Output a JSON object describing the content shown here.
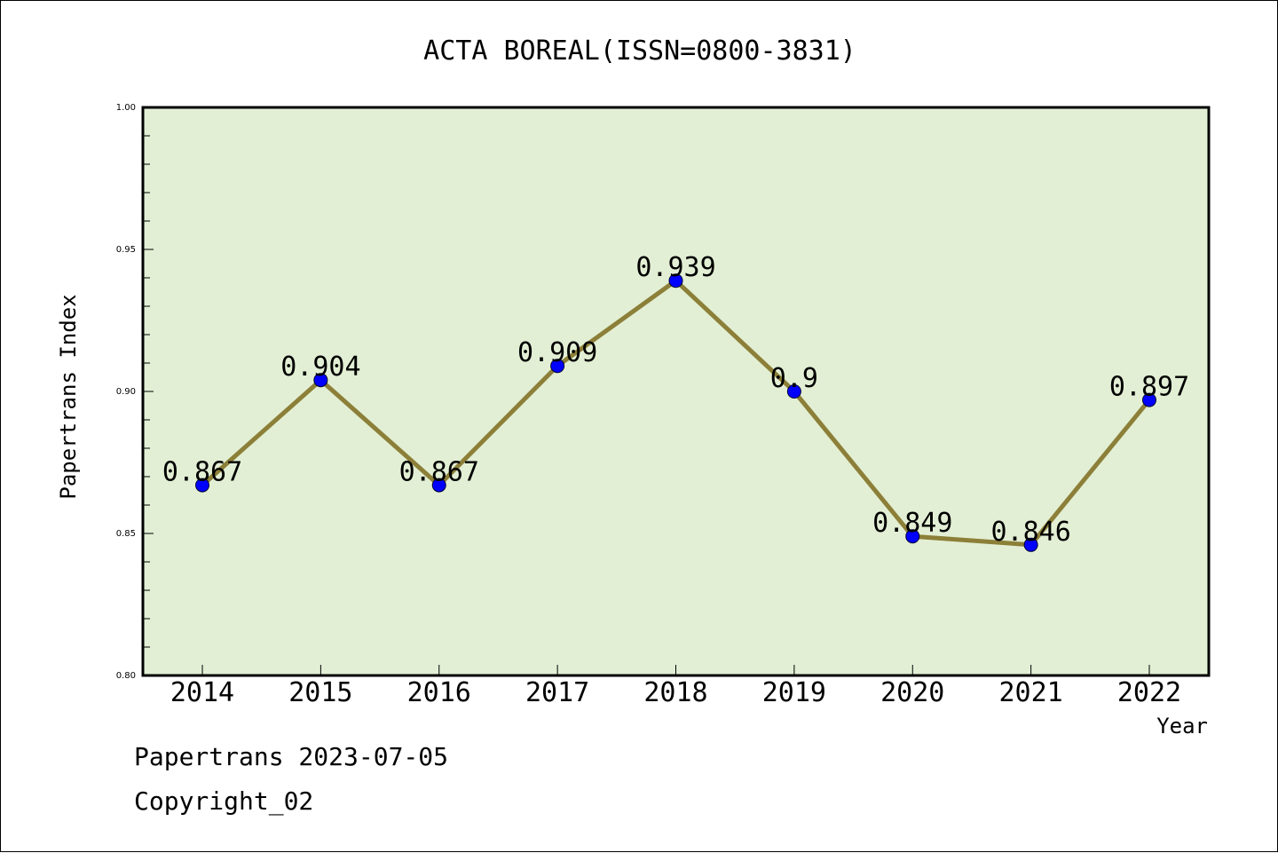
{
  "chart_data": {
    "type": "line",
    "title": "ACTA BOREAL(ISSN=0800-3831)",
    "xlabel": "Year",
    "ylabel": "Papertrans Index",
    "categories": [
      "2014",
      "2015",
      "2016",
      "2017",
      "2018",
      "2019",
      "2020",
      "2021",
      "2022"
    ],
    "values": [
      0.867,
      0.904,
      0.867,
      0.909,
      0.939,
      0.9,
      0.849,
      0.846,
      0.897
    ],
    "data_labels": [
      "0.867",
      "0.904",
      "0.867",
      "0.909",
      "0.939",
      "0.9",
      "0.849",
      "0.846",
      "0.897"
    ],
    "ylim": [
      0.8,
      1.0
    ],
    "y_ticks": [
      0.8,
      0.85,
      0.9,
      0.95,
      1.0
    ],
    "y_tick_labels": [
      "0.80",
      "0.85",
      "0.90",
      "0.95",
      "1.00"
    ],
    "grid": false,
    "colors": {
      "plot_background": "#e2efd4",
      "line": "#8c7f38",
      "marker": "#0000ff"
    }
  },
  "footer": {
    "line1": "Papertrans 2023-07-05",
    "line2": "Copyright_02"
  }
}
